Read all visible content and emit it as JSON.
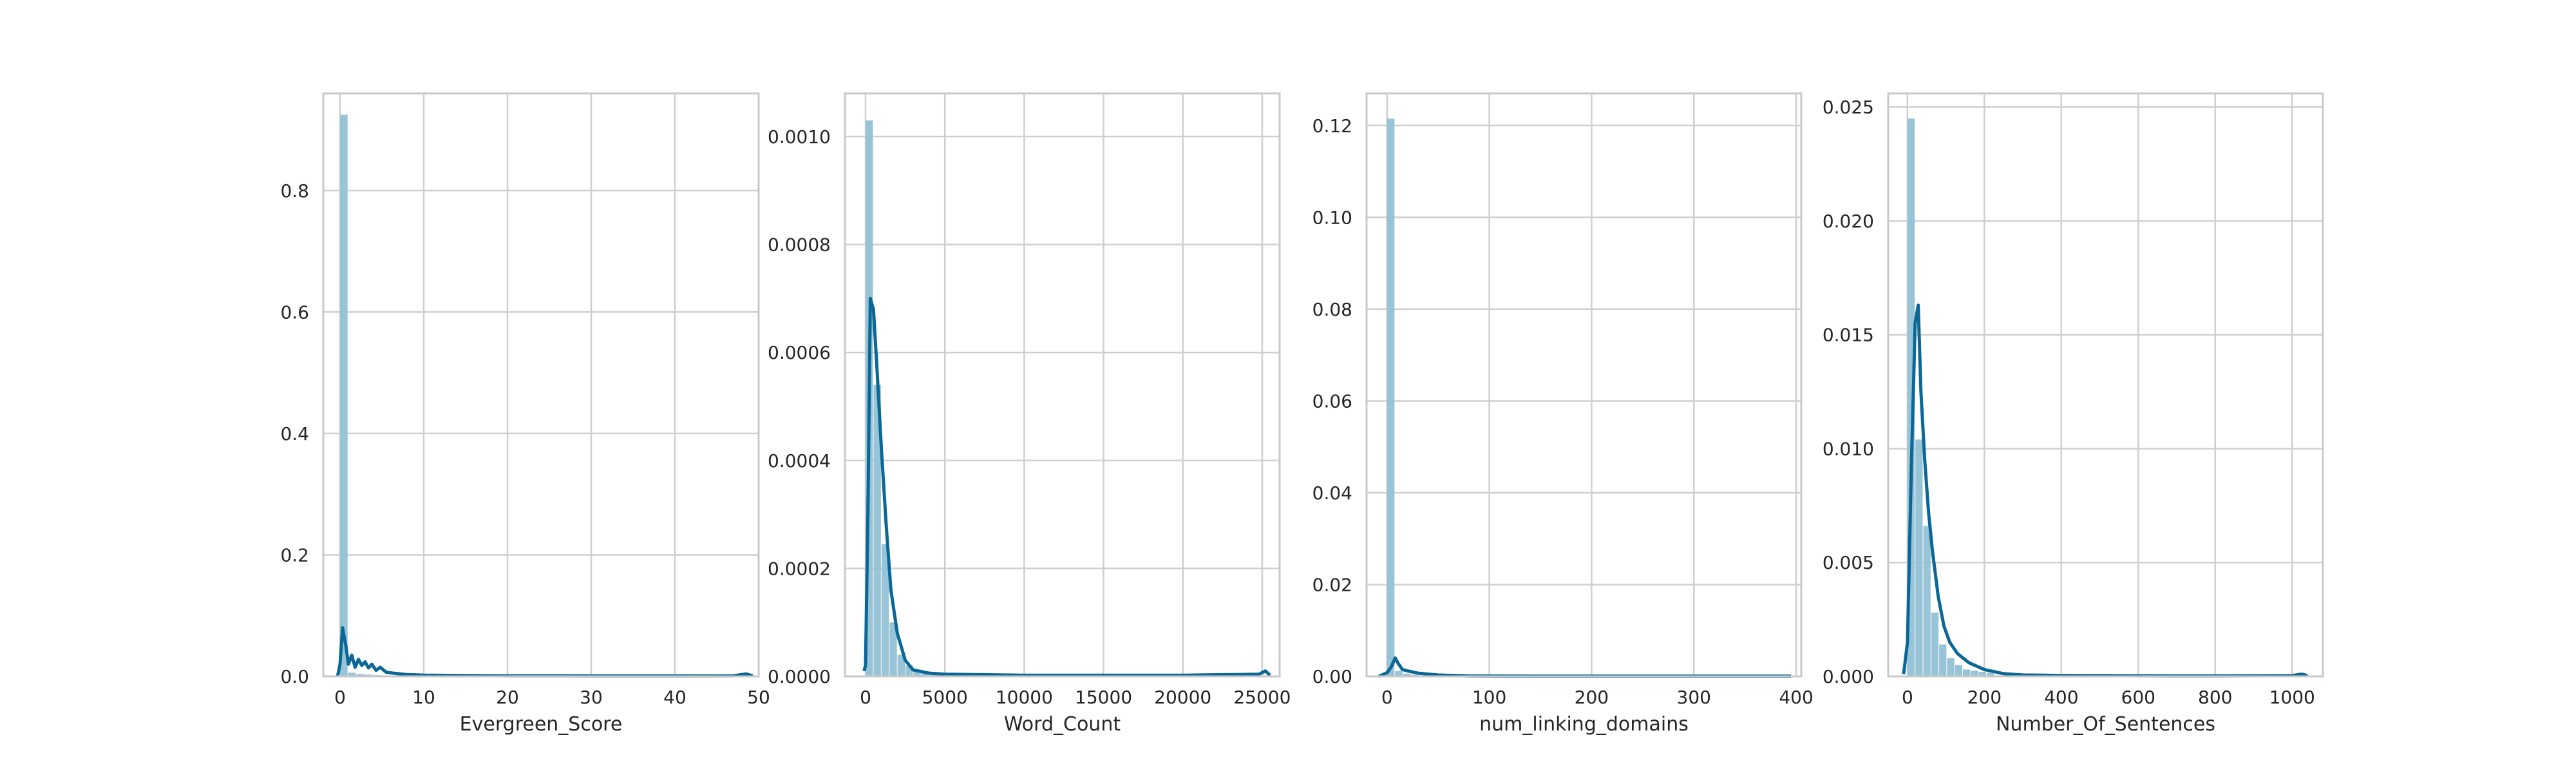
{
  "colors": {
    "bar": "#92c1d6",
    "kde": "#0b6896",
    "grid": "#cfcfcf",
    "spine": "#c8c8c8",
    "text": "#262626"
  },
  "chart_data": [
    {
      "type": "histogram-kde",
      "xlabel": "Evergreen_Score",
      "xlim": [
        -2,
        50
      ],
      "ylim": [
        0,
        0.96
      ],
      "xticks": [
        0,
        10,
        20,
        30,
        40,
        50
      ],
      "yticks": [
        0.0,
        0.2,
        0.4,
        0.6,
        0.8
      ],
      "ytick_decimals": 1,
      "bin_width": 0.98,
      "bins": [
        {
          "x0": 0.0,
          "height": 0.925
        },
        {
          "x0": 0.98,
          "height": 0.006
        },
        {
          "x0": 1.96,
          "height": 0.004
        },
        {
          "x0": 2.94,
          "height": 0.003
        },
        {
          "x0": 3.92,
          "height": 0.002
        },
        {
          "x0": 4.9,
          "height": 0.0015
        },
        {
          "x0": 5.88,
          "height": 0.001
        },
        {
          "x0": 6.86,
          "height": 0.001
        },
        {
          "x0": 7.84,
          "height": 0.0008
        }
      ],
      "kde": [
        [
          -0.3,
          0.0
        ],
        [
          0.0,
          0.02
        ],
        [
          0.3,
          0.08
        ],
        [
          0.7,
          0.05
        ],
        [
          1.0,
          0.02
        ],
        [
          1.4,
          0.035
        ],
        [
          1.8,
          0.015
        ],
        [
          2.2,
          0.028
        ],
        [
          2.6,
          0.018
        ],
        [
          3.0,
          0.024
        ],
        [
          3.4,
          0.014
        ],
        [
          3.8,
          0.02
        ],
        [
          4.3,
          0.01
        ],
        [
          4.8,
          0.015
        ],
        [
          5.5,
          0.007
        ],
        [
          6.5,
          0.005
        ],
        [
          8,
          0.003
        ],
        [
          10,
          0.002
        ],
        [
          14,
          0.0015
        ],
        [
          20,
          0.001
        ],
        [
          30,
          0.0008
        ],
        [
          40,
          0.0008
        ],
        [
          47,
          0.001
        ],
        [
          48.5,
          0.004
        ],
        [
          49.3,
          0.001
        ]
      ]
    },
    {
      "type": "histogram-kde",
      "xlabel": "Word_Count",
      "xlim": [
        -1300,
        26100
      ],
      "ylim": [
        0,
        0.00108
      ],
      "xticks": [
        0,
        5000,
        10000,
        15000,
        20000,
        25000
      ],
      "yticks": [
        0.0,
        0.0002,
        0.0004,
        0.0006,
        0.0008,
        0.001
      ],
      "ytick_decimals": 4,
      "bin_width": 504,
      "bins": [
        {
          "x0": 0,
          "height": 0.00103
        },
        {
          "x0": 504,
          "height": 0.00054
        },
        {
          "x0": 1008,
          "height": 0.000245
        },
        {
          "x0": 1512,
          "height": 0.0001
        },
        {
          "x0": 2016,
          "height": 4e-05
        },
        {
          "x0": 2520,
          "height": 2e-05
        },
        {
          "x0": 3024,
          "height": 1e-05
        },
        {
          "x0": 3528,
          "height": 7e-06
        },
        {
          "x0": 4032,
          "height": 5e-06
        }
      ],
      "kde": [
        [
          -100,
          1e-05
        ],
        [
          0,
          2e-05
        ],
        [
          150,
          0.0003
        ],
        [
          300,
          0.0007
        ],
        [
          500,
          0.00068
        ],
        [
          700,
          0.00058
        ],
        [
          1000,
          0.00042
        ],
        [
          1300,
          0.00028
        ],
        [
          1600,
          0.00016
        ],
        [
          2000,
          8e-05
        ],
        [
          2500,
          3e-05
        ],
        [
          3000,
          1.2e-05
        ],
        [
          4000,
          6e-06
        ],
        [
          5000,
          4e-06
        ],
        [
          10000,
          2e-06
        ],
        [
          20000,
          2e-06
        ],
        [
          24800,
          4e-06
        ],
        [
          25200,
          1e-05
        ],
        [
          25500,
          2e-06
        ]
      ]
    },
    {
      "type": "histogram-kde",
      "xlabel": "num_linking_domains",
      "xlim": [
        -20,
        405
      ],
      "ylim": [
        0,
        0.127
      ],
      "xticks": [
        0,
        100,
        200,
        300,
        400
      ],
      "yticks": [
        0.0,
        0.02,
        0.04,
        0.06,
        0.08,
        0.1,
        0.12
      ],
      "ytick_decimals": 2,
      "bin_width": 7.9,
      "bins": [
        {
          "x0": 0,
          "height": 0.1215
        },
        {
          "x0": 7.9,
          "height": 0.0012
        },
        {
          "x0": 15.8,
          "height": 0.0006
        },
        {
          "x0": 23.7,
          "height": 0.0003
        },
        {
          "x0": 31.6,
          "height": 0.0002
        }
      ],
      "kde": [
        [
          -8,
          0.0
        ],
        [
          0,
          0.0008
        ],
        [
          4,
          0.002
        ],
        [
          8,
          0.004
        ],
        [
          11,
          0.0028
        ],
        [
          15,
          0.0015
        ],
        [
          20,
          0.0012
        ],
        [
          30,
          0.0007
        ],
        [
          50,
          0.0003
        ],
        [
          80,
          0.0001
        ],
        [
          150,
          5e-05
        ],
        [
          300,
          5e-05
        ],
        [
          395,
          5e-05
        ]
      ]
    },
    {
      "type": "histogram-kde",
      "xlabel": "Number_Of_Sentences",
      "xlim": [
        -50,
        1080
      ],
      "ylim": [
        0,
        0.0256
      ],
      "xticks": [
        0,
        200,
        400,
        600,
        800,
        1000
      ],
      "yticks": [
        0.0,
        0.005,
        0.01,
        0.015,
        0.02,
        0.025
      ],
      "ytick_decimals": 3,
      "bin_width": 20.6,
      "bins": [
        {
          "x0": 0,
          "height": 0.0245
        },
        {
          "x0": 20.6,
          "height": 0.0104
        },
        {
          "x0": 41.2,
          "height": 0.0066
        },
        {
          "x0": 61.8,
          "height": 0.0028
        },
        {
          "x0": 82.4,
          "height": 0.0014
        },
        {
          "x0": 103,
          "height": 0.0008
        },
        {
          "x0": 123.6,
          "height": 0.0005
        },
        {
          "x0": 144.2,
          "height": 0.0003
        },
        {
          "x0": 164.8,
          "height": 0.00025
        },
        {
          "x0": 185.4,
          "height": 0.0002
        },
        {
          "x0": 206,
          "height": 0.00015
        }
      ],
      "kde": [
        [
          -10,
          0.0001
        ],
        [
          0,
          0.0015
        ],
        [
          10,
          0.009
        ],
        [
          20,
          0.0155
        ],
        [
          28,
          0.0163
        ],
        [
          35,
          0.0125
        ],
        [
          45,
          0.0095
        ],
        [
          55,
          0.0072
        ],
        [
          65,
          0.0055
        ],
        [
          80,
          0.0035
        ],
        [
          95,
          0.0022
        ],
        [
          110,
          0.0015
        ],
        [
          130,
          0.001
        ],
        [
          160,
          0.0006
        ],
        [
          200,
          0.0003
        ],
        [
          250,
          0.00012
        ],
        [
          300,
          6e-05
        ],
        [
          400,
          4e-05
        ],
        [
          700,
          2e-05
        ],
        [
          1000,
          3e-05
        ],
        [
          1025,
          0.0001
        ],
        [
          1040,
          3e-05
        ]
      ]
    }
  ]
}
